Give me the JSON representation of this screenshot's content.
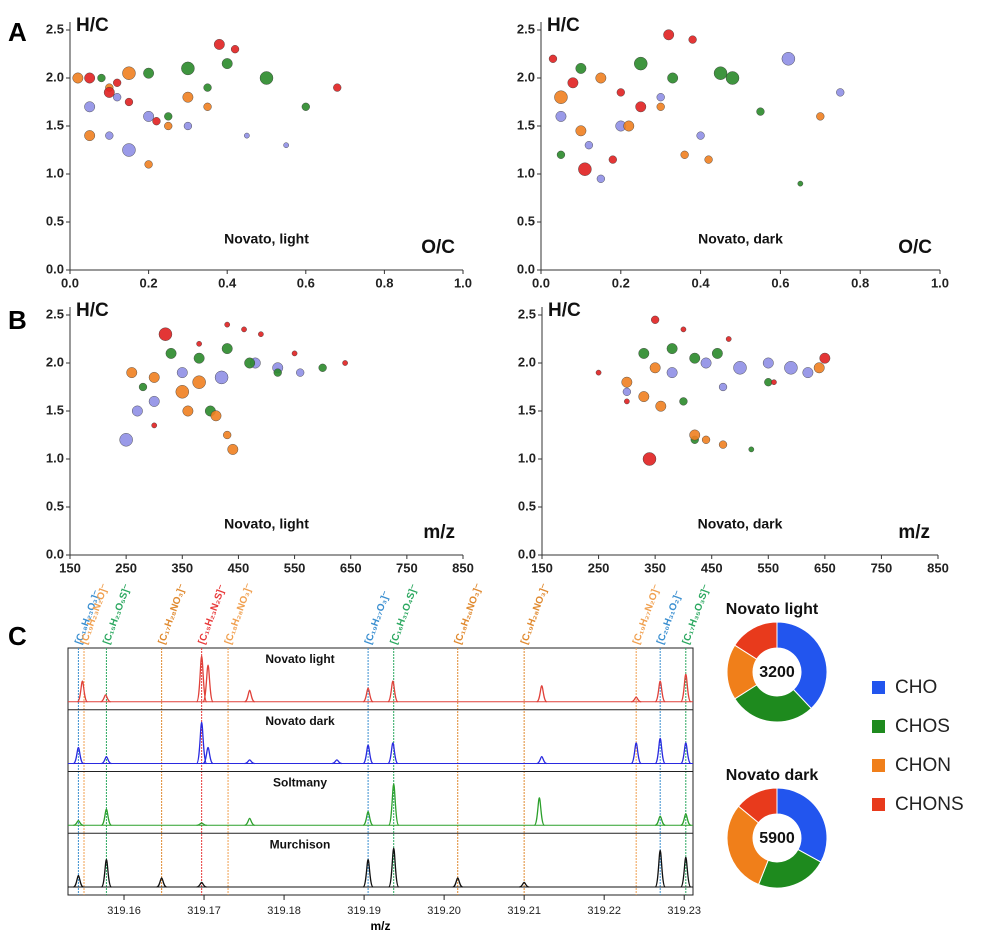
{
  "panel_labels": [
    "A",
    "B",
    "C"
  ],
  "chart_data": [
    {
      "type": "scatter",
      "x_label": "O/C",
      "y_label": "H/C",
      "annotation": "Novato, light",
      "xlim": [
        0,
        1
      ],
      "ylim": [
        0,
        2.5
      ],
      "xticks": [
        {
          "value": 0,
          "label": "0.0"
        },
        0.2,
        0.4,
        0.6,
        0.8,
        {
          "value": 1,
          "label": "1.0"
        }
      ],
      "yticks": [
        {
          "value": 0,
          "label": "0.0"
        },
        0.5,
        {
          "value": 1,
          "label": "1.0"
        },
        1.5,
        {
          "value": 2,
          "label": "2.0"
        },
        2.5
      ],
      "series": [
        {
          "color": "#8f8fe6",
          "x": [
            0.05,
            0.1,
            0.15,
            0.2,
            0.12,
            0.3,
            0.45,
            0.55
          ],
          "values": [
            1.7,
            1.4,
            1.25,
            1.6,
            1.8,
            1.5,
            1.4,
            1.3
          ],
          "sizes": [
            4,
            3,
            5,
            4,
            3,
            3,
            2,
            2
          ]
        },
        {
          "color": "#2a8a2a",
          "x": [
            0.08,
            0.2,
            0.3,
            0.35,
            0.5,
            0.6,
            0.4,
            0.25
          ],
          "values": [
            2.0,
            2.05,
            2.1,
            1.9,
            2.0,
            1.7,
            2.15,
            1.6
          ],
          "sizes": [
            3,
            4,
            5,
            3,
            5,
            3,
            4,
            3
          ]
        },
        {
          "color": "#f07f20",
          "x": [
            0.02,
            0.1,
            0.15,
            0.25,
            0.3,
            0.05,
            0.2,
            0.35
          ],
          "values": [
            2.0,
            1.9,
            2.05,
            1.5,
            1.8,
            1.4,
            1.1,
            1.7
          ],
          "sizes": [
            4,
            3,
            5,
            3,
            4,
            4,
            3,
            3
          ]
        },
        {
          "color": "#e02020",
          "x": [
            0.05,
            0.1,
            0.15,
            0.38,
            0.42,
            0.68,
            0.22,
            0.12
          ],
          "values": [
            2.0,
            1.85,
            1.75,
            2.35,
            2.3,
            1.9,
            1.55,
            1.95
          ],
          "sizes": [
            4,
            4,
            3,
            4,
            3,
            3,
            3,
            3
          ]
        }
      ]
    },
    {
      "type": "scatter",
      "x_label": "O/C",
      "y_label": "H/C",
      "annotation": "Novato, dark",
      "xlim": [
        0,
        1
      ],
      "ylim": [
        0,
        2.5
      ],
      "xticks": [
        {
          "value": 0,
          "label": "0.0"
        },
        0.2,
        0.4,
        0.6,
        0.8,
        {
          "value": 1,
          "label": "1.0"
        }
      ],
      "yticks": [
        {
          "value": 0,
          "label": "0.0"
        },
        0.5,
        {
          "value": 1,
          "label": "1.0"
        },
        1.5,
        {
          "value": 2,
          "label": "2.0"
        },
        2.5
      ],
      "series": [
        {
          "color": "#8f8fe6",
          "x": [
            0.05,
            0.12,
            0.2,
            0.3,
            0.62,
            0.75,
            0.15,
            0.4
          ],
          "values": [
            1.6,
            1.3,
            1.5,
            1.8,
            2.2,
            1.85,
            0.95,
            1.4
          ],
          "sizes": [
            4,
            3,
            4,
            3,
            5,
            3,
            3,
            3
          ]
        },
        {
          "color": "#2a8a2a",
          "x": [
            0.1,
            0.25,
            0.33,
            0.45,
            0.48,
            0.55,
            0.05,
            0.65
          ],
          "values": [
            2.1,
            2.15,
            2.0,
            2.05,
            2.0,
            1.65,
            1.2,
            0.9
          ],
          "sizes": [
            4,
            5,
            4,
            5,
            5,
            3,
            3,
            2
          ]
        },
        {
          "color": "#f07f20",
          "x": [
            0.05,
            0.15,
            0.22,
            0.3,
            0.36,
            0.42,
            0.1,
            0.7
          ],
          "values": [
            1.8,
            2.0,
            1.5,
            1.7,
            1.2,
            1.15,
            1.45,
            1.6
          ],
          "sizes": [
            5,
            4,
            4,
            3,
            3,
            3,
            4,
            3
          ]
        },
        {
          "color": "#e02020",
          "x": [
            0.11,
            0.08,
            0.2,
            0.32,
            0.38,
            0.03,
            0.25,
            0.18
          ],
          "values": [
            1.05,
            1.95,
            1.85,
            2.45,
            2.4,
            2.2,
            1.7,
            1.15
          ],
          "sizes": [
            5,
            4,
            3,
            4,
            3,
            3,
            4,
            3
          ]
        }
      ]
    },
    {
      "type": "scatter",
      "x_label": "m/z",
      "y_label": "H/C",
      "annotation": "Novato, light",
      "xlim": [
        150,
        850
      ],
      "ylim": [
        0,
        2.5
      ],
      "xticks": [
        150,
        250,
        350,
        450,
        550,
        650,
        750,
        850
      ],
      "yticks": [
        {
          "value": 0,
          "label": "0.0"
        },
        0.5,
        {
          "value": 1,
          "label": "1.0"
        },
        1.5,
        {
          "value": 2,
          "label": "2.0"
        },
        2.5
      ],
      "series": [
        {
          "color": "#8f8fe6",
          "x": [
            250,
            300,
            350,
            420,
            480,
            520,
            560,
            270
          ],
          "values": [
            1.2,
            1.6,
            1.9,
            1.85,
            2.0,
            1.95,
            1.9,
            1.5
          ],
          "sizes": [
            5,
            4,
            4,
            5,
            4,
            4,
            3,
            4
          ]
        },
        {
          "color": "#2a8a2a",
          "x": [
            330,
            380,
            430,
            470,
            520,
            600,
            280,
            400
          ],
          "values": [
            2.1,
            2.05,
            2.15,
            2.0,
            1.9,
            1.95,
            1.75,
            1.5
          ],
          "sizes": [
            4,
            4,
            4,
            4,
            3,
            3,
            3,
            4
          ]
        },
        {
          "color": "#f07f20",
          "x": [
            260,
            300,
            350,
            380,
            410,
            430,
            440,
            360
          ],
          "values": [
            1.9,
            1.85,
            1.7,
            1.8,
            1.45,
            1.25,
            1.1,
            1.5
          ],
          "sizes": [
            4,
            4,
            5,
            5,
            4,
            3,
            4,
            4
          ]
        },
        {
          "color": "#e02020",
          "x": [
            320,
            430,
            460,
            490,
            380,
            550,
            300,
            640
          ],
          "values": [
            2.3,
            2.4,
            2.35,
            2.3,
            2.2,
            2.1,
            1.35,
            2.0
          ],
          "sizes": [
            5,
            2,
            2,
            2,
            2,
            2,
            2,
            2
          ]
        }
      ]
    },
    {
      "type": "scatter",
      "x_label": "m/z",
      "y_label": "H/C",
      "annotation": "Novato, dark",
      "xlim": [
        150,
        850
      ],
      "ylim": [
        0,
        2.5
      ],
      "xticks": [
        150,
        250,
        350,
        450,
        550,
        650,
        750,
        850
      ],
      "yticks": [
        {
          "value": 0,
          "label": "0.0"
        },
        0.5,
        {
          "value": 1,
          "label": "1.0"
        },
        1.5,
        {
          "value": 2,
          "label": "2.0"
        },
        2.5
      ],
      "series": [
        {
          "color": "#8f8fe6",
          "x": [
            300,
            380,
            440,
            500,
            550,
            590,
            620,
            470
          ],
          "values": [
            1.7,
            1.9,
            2.0,
            1.95,
            2.0,
            1.95,
            1.9,
            1.75
          ],
          "sizes": [
            3,
            4,
            4,
            5,
            4,
            5,
            4,
            3
          ]
        },
        {
          "color": "#2a8a2a",
          "x": [
            330,
            380,
            420,
            460,
            400,
            550,
            420,
            520
          ],
          "values": [
            2.1,
            2.15,
            2.05,
            2.1,
            1.6,
            1.8,
            1.2,
            1.1
          ],
          "sizes": [
            4,
            4,
            4,
            4,
            3,
            3,
            3,
            2
          ]
        },
        {
          "color": "#f07f20",
          "x": [
            300,
            330,
            360,
            420,
            440,
            470,
            350,
            640
          ],
          "values": [
            1.8,
            1.65,
            1.55,
            1.25,
            1.2,
            1.15,
            1.95,
            1.95
          ],
          "sizes": [
            4,
            4,
            4,
            4,
            3,
            3,
            4,
            4
          ]
        },
        {
          "color": "#e02020",
          "x": [
            340,
            350,
            400,
            300,
            650,
            480,
            560,
            250
          ],
          "values": [
            1.0,
            2.45,
            2.35,
            1.6,
            2.05,
            2.25,
            1.8,
            1.9
          ],
          "sizes": [
            5,
            3,
            2,
            2,
            4,
            2,
            2,
            2
          ]
        }
      ]
    },
    {
      "type": "spectrum",
      "x_label": "m/z",
      "xlim": [
        319.153,
        319.2311
      ],
      "ylim": [
        0,
        1
      ],
      "xticks": [
        319.16,
        319.17,
        319.18,
        319.19,
        {
          "value": 319.2,
          "label": "319.20"
        },
        319.21,
        319.22,
        319.23
      ],
      "annotations": [
        {
          "text": "[C₁₈H₂₃O₃]⁻",
          "x": 319.1543,
          "color": "#3b8fd0"
        },
        {
          "text": "[C₁₉H₂₃N₂O]⁻",
          "x": 319.155,
          "color": "#f0a050"
        },
        {
          "text": "[C₁₅H₂₃O₅S]⁻",
          "x": 319.1578,
          "color": "#2ca860"
        },
        {
          "text": "[C₁₇H₂₈NO₃]⁻",
          "x": 319.1647,
          "color": "#e08a30"
        },
        {
          "text": "[C₁₅H₂₃N₂S]⁻",
          "x": 319.1697,
          "color": "#e83a3a"
        },
        {
          "text": "[C₁₈H₂₈NO₃]⁻",
          "x": 319.173,
          "color": "#f0a050"
        },
        {
          "text": "[C₁₉H₂₇O₃]⁻",
          "x": 319.1905,
          "color": "#3b8fd0"
        },
        {
          "text": "[C₁₆H₃₁O₄S]⁻",
          "x": 319.1937,
          "color": "#2ca860"
        },
        {
          "text": "[C₁₈H₂₆NO₃]⁻",
          "x": 319.2017,
          "color": "#e08a30"
        },
        {
          "text": "[C₁₉H₂₈NO₃]⁻",
          "x": 319.21,
          "color": "#e08a30"
        },
        {
          "text": "[C₁₉H₂₇N₂O]⁻",
          "x": 319.224,
          "color": "#f0a050"
        },
        {
          "text": "[C₂₀H₃₁O₂]⁻",
          "x": 319.227,
          "color": "#3b8fd0"
        },
        {
          "text": "[C₁₇H₃₅O₃S]⁻",
          "x": 319.2302,
          "color": "#2ca860"
        }
      ],
      "traces": [
        {
          "name": "Novato light",
          "color": "#e0413a",
          "x": [
            319.1548,
            319.1577,
            319.1697,
            319.1705,
            319.1757,
            319.1905,
            319.1936,
            319.2122,
            319.224,
            319.227,
            319.2302
          ],
          "values": [
            0.45,
            0.15,
            1.0,
            0.8,
            0.25,
            0.3,
            0.45,
            0.35,
            0.1,
            0.45,
            0.6
          ]
        },
        {
          "name": "Novato dark",
          "color": "#2a2ae0",
          "x": [
            319.1543,
            319.1578,
            319.1697,
            319.1705,
            319.1757,
            319.1866,
            319.1905,
            319.1936,
            319.2122,
            319.224,
            319.227,
            319.2302
          ],
          "values": [
            0.35,
            0.15,
            0.9,
            0.35,
            0.08,
            0.08,
            0.4,
            0.45,
            0.15,
            0.45,
            0.55,
            0.45
          ]
        },
        {
          "name": "Soltmany",
          "color": "#2ca02c",
          "x": [
            319.1543,
            319.1578,
            319.1697,
            319.1757,
            319.1905,
            319.1937,
            319.2119,
            319.227,
            319.2302
          ],
          "values": [
            0.1,
            0.35,
            0.05,
            0.15,
            0.3,
            0.9,
            0.6,
            0.2,
            0.25
          ]
        },
        {
          "name": "Murchison",
          "color": "#111111",
          "x": [
            319.1543,
            319.1578,
            319.1647,
            319.1697,
            319.1905,
            319.1937,
            319.2017,
            319.21,
            319.227,
            319.2302
          ],
          "values": [
            0.25,
            0.6,
            0.2,
            0.1,
            0.6,
            0.85,
            0.2,
            0.1,
            0.8,
            0.65
          ]
        }
      ]
    },
    {
      "type": "pie",
      "title": "Novato light",
      "total": 3200,
      "categories": [
        "CHO",
        "CHOS",
        "CHON",
        "CHONS"
      ],
      "values": [
        38,
        28,
        18,
        16
      ],
      "colors": [
        "#2255ee",
        "#1e8a1e",
        "#f07f1a",
        "#e83a1c"
      ]
    },
    {
      "type": "pie",
      "title": "Novato dark",
      "total": 5900,
      "categories": [
        "CHO",
        "CHOS",
        "CHON",
        "CHONS"
      ],
      "values": [
        33,
        23,
        30,
        14
      ],
      "colors": [
        "#2255ee",
        "#1e8a1e",
        "#f07f1a",
        "#e83a1c"
      ]
    }
  ]
}
